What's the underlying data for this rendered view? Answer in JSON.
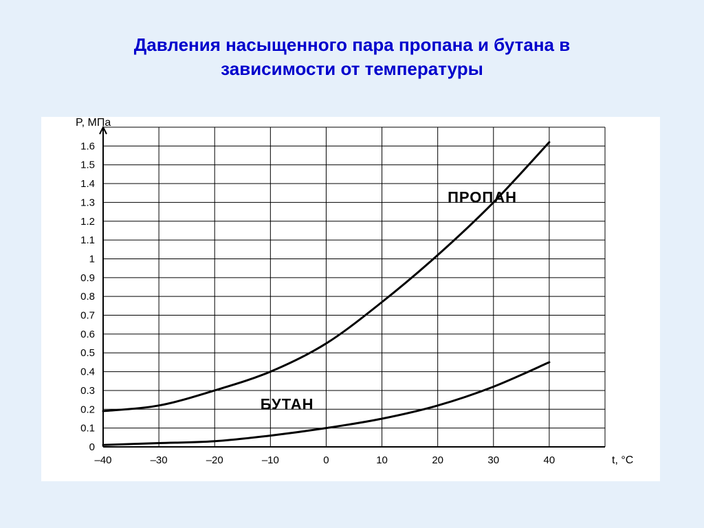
{
  "title_line1": "Давления насыщенного пара пропана и бутана в",
  "title_line2": "зависимости от температуры",
  "chart": {
    "type": "line",
    "background_color": "#ffffff",
    "axis_color": "#000000",
    "grid_color": "#000000",
    "line_color": "#000000",
    "line_width": 3,
    "grid_line_width": 1,
    "x": {
      "label": "t, °C",
      "min": -40,
      "max": 50,
      "tick_step": 10,
      "ticks": [
        -40,
        -30,
        -20,
        -10,
        0,
        10,
        20,
        30,
        40
      ],
      "label_fontsize": 16
    },
    "y": {
      "label": "P, МПа",
      "min": 0,
      "max": 1.7,
      "tick_step": 0.1,
      "ticks": [
        0,
        0.1,
        0.2,
        0.3,
        0.4,
        0.5,
        0.6,
        0.7,
        0.8,
        0.9,
        1.0,
        1.1,
        1.2,
        1.3,
        1.4,
        1.5,
        1.6
      ],
      "label_fontsize": 16
    },
    "tick_fontsize": 15,
    "series": [
      {
        "name": "ПРОПАН",
        "label_x": 28,
        "label_y": 1.3,
        "label_fontsize": 22,
        "data": [
          [
            -40,
            0.19
          ],
          [
            -30,
            0.22
          ],
          [
            -20,
            0.3
          ],
          [
            -10,
            0.4
          ],
          [
            0,
            0.55
          ],
          [
            10,
            0.77
          ],
          [
            20,
            1.02
          ],
          [
            30,
            1.3
          ],
          [
            40,
            1.62
          ]
        ]
      },
      {
        "name": "БУТАН",
        "label_x": -7,
        "label_y": 0.2,
        "label_fontsize": 22,
        "data": [
          [
            -40,
            0.01
          ],
          [
            -30,
            0.02
          ],
          [
            -20,
            0.03
          ],
          [
            -10,
            0.06
          ],
          [
            0,
            0.1
          ],
          [
            10,
            0.15
          ],
          [
            20,
            0.22
          ],
          [
            30,
            0.32
          ],
          [
            40,
            0.45
          ]
        ]
      }
    ]
  },
  "slide_background": "#e6f0fa",
  "title_color": "#0000cc",
  "title_fontsize": 26
}
